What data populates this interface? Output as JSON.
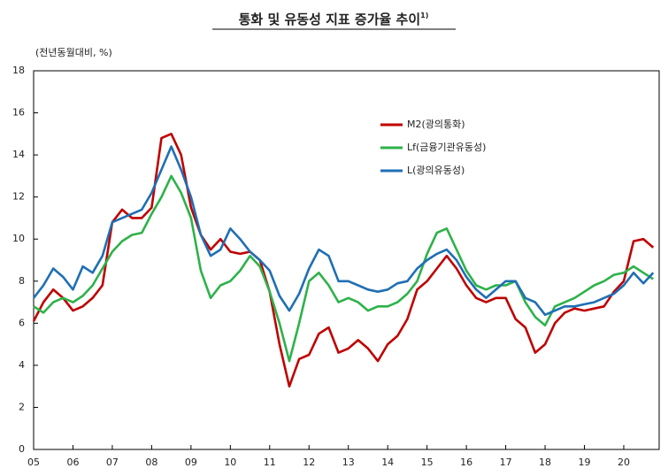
{
  "chart_data": {
    "type": "line",
    "title": "통화 및 유동성 지표 증가율 추이",
    "title_note": "1)",
    "y_label": "(전년동월대비, %)",
    "x": [
      2005,
      2005.25,
      2005.5,
      2005.75,
      2006,
      2006.25,
      2006.5,
      2006.75,
      2007,
      2007.25,
      2007.5,
      2007.75,
      2008,
      2008.25,
      2008.5,
      2008.75,
      2009,
      2009.25,
      2009.5,
      2009.75,
      2010,
      2010.25,
      2010.5,
      2010.75,
      2011,
      2011.25,
      2011.5,
      2011.75,
      2012,
      2012.25,
      2012.5,
      2012.75,
      2013,
      2013.25,
      2013.5,
      2013.75,
      2014,
      2014.25,
      2014.5,
      2014.75,
      2015,
      2015.25,
      2015.5,
      2015.75,
      2016,
      2016.25,
      2016.5,
      2016.75,
      2017,
      2017.25,
      2017.5,
      2017.75,
      2018,
      2018.25,
      2018.5,
      2018.75,
      2019,
      2019.25,
      2019.5,
      2019.75,
      2020,
      2020.25,
      2020.5,
      2020.75
    ],
    "series": [
      {
        "name": "M2(광의통화)",
        "color": "#c00000",
        "values": [
          6.1,
          7.0,
          7.6,
          7.2,
          6.6,
          6.8,
          7.2,
          7.8,
          10.8,
          11.4,
          11.0,
          11.0,
          11.5,
          14.8,
          15.0,
          14.0,
          11.5,
          10.2,
          9.5,
          10.0,
          9.4,
          9.3,
          9.4,
          9.0,
          7.5,
          5.0,
          3.0,
          4.3,
          4.5,
          5.5,
          5.8,
          4.6,
          4.8,
          5.2,
          4.8,
          4.2,
          5.0,
          5.4,
          6.2,
          7.6,
          8.0,
          8.6,
          9.2,
          8.6,
          7.8,
          7.2,
          7.0,
          7.2,
          7.2,
          6.2,
          5.8,
          4.6,
          5.0,
          6.0,
          6.5,
          6.7,
          6.6,
          6.7,
          6.8,
          7.5,
          8.0,
          9.9,
          10.0,
          9.6
        ]
      },
      {
        "name": "Lf(금융기관유동성)",
        "color": "#2db24a",
        "values": [
          6.8,
          6.5,
          7.0,
          7.2,
          7.0,
          7.3,
          7.8,
          8.6,
          9.4,
          9.9,
          10.2,
          10.3,
          11.2,
          12.0,
          13.0,
          12.2,
          11.0,
          8.5,
          7.2,
          7.8,
          8.0,
          8.5,
          9.2,
          8.7,
          7.5,
          6.0,
          4.2,
          6.0,
          8.0,
          8.4,
          7.8,
          7.0,
          7.2,
          7.0,
          6.6,
          6.8,
          6.8,
          7.0,
          7.4,
          8.0,
          9.3,
          10.3,
          10.5,
          9.5,
          8.5,
          7.8,
          7.6,
          7.8,
          7.8,
          8.0,
          7.0,
          6.3,
          5.9,
          6.8,
          7.0,
          7.2,
          7.5,
          7.8,
          8.0,
          8.3,
          8.4,
          8.7,
          8.4,
          8.1
        ]
      },
      {
        "name": "L(광의유동성)",
        "color": "#1f6fb4",
        "values": [
          7.2,
          7.8,
          8.6,
          8.2,
          7.6,
          8.7,
          8.4,
          9.2,
          10.8,
          11.0,
          11.2,
          11.4,
          12.2,
          13.3,
          14.4,
          13.3,
          12.0,
          10.2,
          9.2,
          9.5,
          10.5,
          10.0,
          9.4,
          9.0,
          8.5,
          7.3,
          6.6,
          7.4,
          8.6,
          9.5,
          9.2,
          8.0,
          8.0,
          7.8,
          7.6,
          7.5,
          7.6,
          7.9,
          8.0,
          8.6,
          9.0,
          9.3,
          9.5,
          9.0,
          8.2,
          7.6,
          7.2,
          7.6,
          8.0,
          8.0,
          7.2,
          7.0,
          6.4,
          6.6,
          6.8,
          6.8,
          6.9,
          7.0,
          7.2,
          7.4,
          7.8,
          8.4,
          7.9,
          8.4
        ]
      }
    ],
    "xlim": [
      2005,
      2020.9
    ],
    "xticks": [
      {
        "value": 2005,
        "label": "05"
      },
      {
        "value": 2006,
        "label": "06"
      },
      {
        "value": 2007,
        "label": "07"
      },
      {
        "value": 2008,
        "label": "08"
      },
      {
        "value": 2009,
        "label": "09"
      },
      {
        "value": 2010,
        "label": "10"
      },
      {
        "value": 2011,
        "label": "11"
      },
      {
        "value": 2012,
        "label": "12"
      },
      {
        "value": 2013,
        "label": "13"
      },
      {
        "value": 2014,
        "label": "14"
      },
      {
        "value": 2015,
        "label": "15"
      },
      {
        "value": 2016,
        "label": "16"
      },
      {
        "value": 2017,
        "label": "17"
      },
      {
        "value": 2018,
        "label": "18"
      },
      {
        "value": 2019,
        "label": "19"
      },
      {
        "value": 2020,
        "label": "20"
      }
    ],
    "ylim": [
      0,
      18
    ],
    "yticks": [
      0,
      2,
      4,
      6,
      8,
      10,
      12,
      14,
      16,
      18
    ],
    "grid": false
  }
}
